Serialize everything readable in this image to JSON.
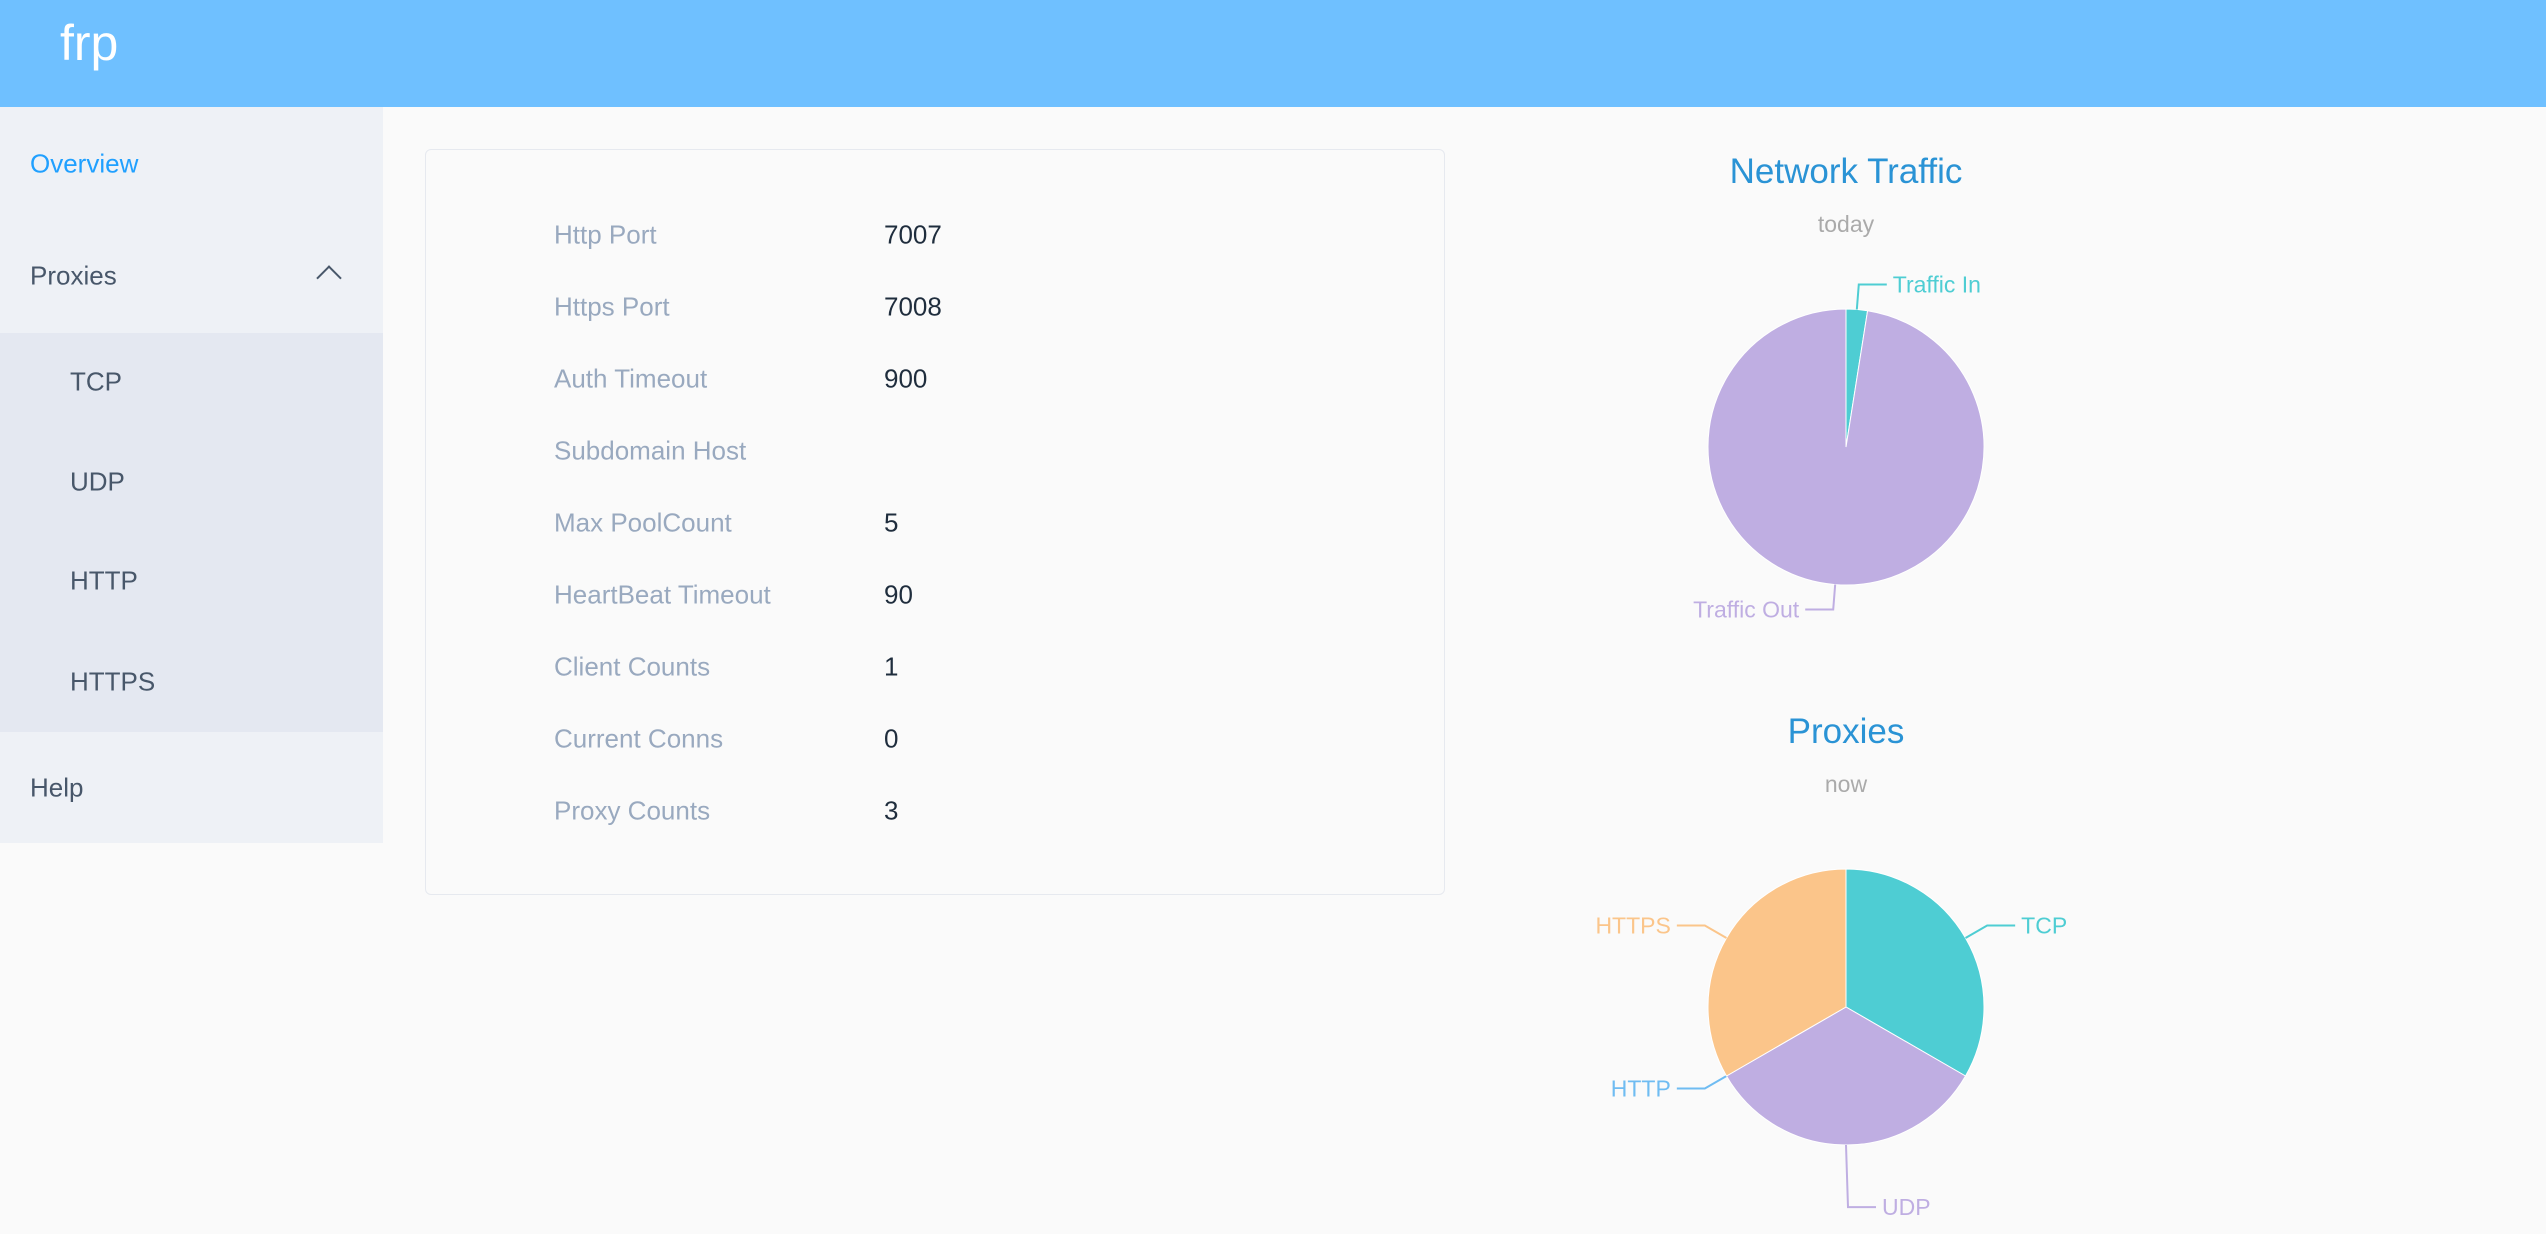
{
  "header": {
    "title": "frp"
  },
  "sidebar": {
    "overview": "Overview",
    "proxies": "Proxies",
    "sub": [
      "TCP",
      "UDP",
      "HTTP",
      "HTTPS"
    ],
    "help": "Help"
  },
  "info": [
    {
      "label": "Http Port",
      "value": "7007"
    },
    {
      "label": "Https Port",
      "value": "7008"
    },
    {
      "label": "Auth Timeout",
      "value": "900"
    },
    {
      "label": "Subdomain Host",
      "value": ""
    },
    {
      "label": "Max PoolCount",
      "value": "5"
    },
    {
      "label": "HeartBeat Timeout",
      "value": "90"
    },
    {
      "label": "Client Counts",
      "value": "1"
    },
    {
      "label": "Current Conns",
      "value": "0"
    },
    {
      "label": "Proxy Counts",
      "value": "3"
    }
  ],
  "chart_data": [
    {
      "type": "pie",
      "title": "Network Traffic",
      "subtitle": "today",
      "slices": [
        {
          "name": "Traffic In",
          "value": 2.5,
          "color": "#4ecdd3"
        },
        {
          "name": "Traffic Out",
          "value": 97.5,
          "color": "#bfaee2"
        }
      ]
    },
    {
      "type": "pie",
      "title": "Proxies",
      "subtitle": "now",
      "slices": [
        {
          "name": "TCP",
          "value": 1,
          "color": "#4ecdd3"
        },
        {
          "name": "UDP",
          "value": 1,
          "color": "#bfaee2"
        },
        {
          "name": "HTTP",
          "value": 0,
          "color": "#6fbcf2"
        },
        {
          "name": "HTTPS",
          "value": 1,
          "color": "#fbc58a"
        }
      ]
    }
  ]
}
